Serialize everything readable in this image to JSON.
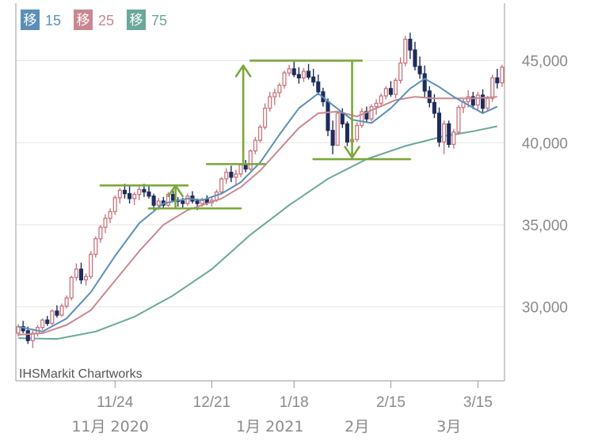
{
  "chart_data": {
    "type": "candlestick",
    "credit": "IHSMarkit Chartworks",
    "colors": {
      "up": "#c9767f",
      "down": "#1f2d5c",
      "ma15": "#5b8fb8",
      "ma25": "#c98891",
      "ma75": "#69a89a",
      "annotation": "#7ba83a",
      "axis": "#9a9a9a",
      "grid": "#e6e6e6"
    },
    "legend": [
      {
        "label": "移",
        "period": "15",
        "color": "#5b8fb8"
      },
      {
        "label": "移",
        "period": "25",
        "color": "#c98891"
      },
      {
        "label": "移",
        "period": "75",
        "color": "#69a89a"
      }
    ],
    "ylim": [
      25500,
      48500
    ],
    "y_ticks": [
      {
        "value": 30000,
        "label": "30,000"
      },
      {
        "value": 35000,
        "label": "35,000"
      },
      {
        "value": 40000,
        "label": "40,000"
      },
      {
        "value": 45000,
        "label": "45,000"
      }
    ],
    "x_ticks": [
      {
        "day": 20,
        "label": "11/24"
      },
      {
        "day": 40,
        "label": "12/21"
      },
      {
        "day": 57,
        "label": "1/18"
      },
      {
        "day": 77,
        "label": "2/15"
      },
      {
        "day": 95,
        "label": "3/15"
      }
    ],
    "month_labels": [
      {
        "day": 19,
        "label": "11月 2020"
      },
      {
        "day": 52,
        "label": "1月 2021"
      },
      {
        "day": 70,
        "label": "2月"
      },
      {
        "day": 89,
        "label": "3月"
      }
    ],
    "candles": [
      [
        28400,
        28950,
        28200,
        28800
      ],
      [
        28800,
        29150,
        28400,
        28550
      ],
      [
        28550,
        28800,
        27750,
        27950
      ],
      [
        27950,
        28600,
        27500,
        28400
      ],
      [
        28400,
        28900,
        28200,
        28750
      ],
      [
        28750,
        29300,
        28600,
        29200
      ],
      [
        29200,
        29450,
        28850,
        29000
      ],
      [
        29000,
        29850,
        28900,
        29750
      ],
      [
        29750,
        30100,
        29350,
        29500
      ],
      [
        29500,
        30200,
        29400,
        30050
      ],
      [
        30050,
        30700,
        29900,
        30550
      ],
      [
        30550,
        31900,
        30400,
        31800
      ],
      [
        31800,
        32650,
        31600,
        32300
      ],
      [
        32300,
        32700,
        31400,
        31650
      ],
      [
        31650,
        32050,
        31300,
        31850
      ],
      [
        31850,
        33400,
        31700,
        33200
      ],
      [
        33200,
        34300,
        33000,
        34150
      ],
      [
        34150,
        35000,
        33900,
        34850
      ],
      [
        34850,
        35650,
        34500,
        35400
      ],
      [
        35400,
        36000,
        35100,
        35800
      ],
      [
        35800,
        36800,
        35600,
        36650
      ],
      [
        36650,
        37250,
        36300,
        37100
      ],
      [
        37100,
        37500,
        36600,
        36900
      ],
      [
        36900,
        37400,
        36300,
        36600
      ],
      [
        36600,
        37000,
        36200,
        36850
      ],
      [
        36850,
        37400,
        36500,
        37150
      ],
      [
        37150,
        37500,
        36700,
        37000
      ],
      [
        37000,
        37350,
        36600,
        36750
      ],
      [
        36750,
        36900,
        35900,
        36200
      ],
      [
        36200,
        36650,
        35900,
        36450
      ],
      [
        36450,
        36700,
        36050,
        36200
      ],
      [
        36200,
        37000,
        36100,
        36850
      ],
      [
        36850,
        37100,
        36400,
        36500
      ],
      [
        36500,
        36700,
        36100,
        36450
      ],
      [
        36450,
        36650,
        36050,
        36300
      ],
      [
        36300,
        36900,
        36150,
        36750
      ],
      [
        36750,
        37050,
        36300,
        36450
      ],
      [
        36450,
        36600,
        35900,
        36300
      ],
      [
        36300,
        36650,
        36100,
        36550
      ],
      [
        36550,
        36800,
        36200,
        36350
      ],
      [
        36350,
        36700,
        36100,
        36500
      ],
      [
        36500,
        37150,
        36400,
        37000
      ],
      [
        37000,
        37900,
        36850,
        37800
      ],
      [
        37800,
        38450,
        37500,
        38200
      ],
      [
        38200,
        38600,
        37600,
        37900
      ],
      [
        37900,
        38350,
        37400,
        38100
      ],
      [
        38100,
        38750,
        37900,
        38650
      ],
      [
        38650,
        38950,
        38200,
        38400
      ],
      [
        38400,
        39600,
        38300,
        39500
      ],
      [
        39500,
        40350,
        39300,
        40150
      ],
      [
        40150,
        41100,
        40000,
        40950
      ],
      [
        40950,
        42400,
        40800,
        42100
      ],
      [
        42100,
        43100,
        41900,
        42800
      ],
      [
        42800,
        43300,
        42300,
        43050
      ],
      [
        43050,
        43650,
        42750,
        43500
      ],
      [
        43500,
        44400,
        43300,
        44250
      ],
      [
        44250,
        44750,
        44050,
        44500
      ],
      [
        44500,
        44950,
        44000,
        44150
      ],
      [
        44150,
        44600,
        43600,
        43950
      ],
      [
        43950,
        44550,
        43700,
        44350
      ],
      [
        44350,
        44800,
        43850,
        44000
      ],
      [
        44000,
        44500,
        43450,
        43700
      ],
      [
        43700,
        44150,
        42900,
        43100
      ],
      [
        43100,
        43350,
        42200,
        42500
      ],
      [
        42500,
        42700,
        40400,
        40750
      ],
      [
        40750,
        41350,
        39300,
        39850
      ],
      [
        39850,
        41950,
        39800,
        41800
      ],
      [
        41800,
        42100,
        40900,
        41150
      ],
      [
        41150,
        41300,
        39800,
        40050
      ],
      [
        40050,
        40500,
        39600,
        40200
      ],
      [
        40200,
        41250,
        40050,
        41050
      ],
      [
        41050,
        42100,
        40900,
        41900
      ],
      [
        41900,
        42200,
        41200,
        41450
      ],
      [
        41450,
        42350,
        41300,
        42200
      ],
      [
        42200,
        42650,
        41700,
        42400
      ],
      [
        42400,
        43000,
        42200,
        42850
      ],
      [
        42850,
        43450,
        42650,
        43300
      ],
      [
        43300,
        43750,
        42800,
        42950
      ],
      [
        42950,
        43950,
        42700,
        43800
      ],
      [
        43800,
        45200,
        43600,
        44850
      ],
      [
        44850,
        46500,
        44650,
        46300
      ],
      [
        46300,
        46700,
        45100,
        45650
      ],
      [
        45650,
        46150,
        44400,
        44650
      ],
      [
        44650,
        45250,
        43900,
        44200
      ],
      [
        44200,
        44700,
        42750,
        43150
      ],
      [
        43150,
        43450,
        42150,
        42450
      ],
      [
        42450,
        42950,
        41500,
        41800
      ],
      [
        41800,
        42150,
        39750,
        40050
      ],
      [
        40050,
        41350,
        39300,
        41150
      ],
      [
        41150,
        41350,
        39700,
        39900
      ],
      [
        39900,
        40850,
        39650,
        40650
      ],
      [
        40650,
        42300,
        40500,
        42150
      ],
      [
        42150,
        42700,
        41800,
        42500
      ],
      [
        42500,
        43200,
        42150,
        42800
      ],
      [
        42800,
        43100,
        42050,
        42300
      ],
      [
        42300,
        43100,
        41950,
        42900
      ],
      [
        42900,
        43250,
        41800,
        42100
      ],
      [
        42100,
        42850,
        41900,
        42700
      ],
      [
        42700,
        44150,
        42500,
        43950
      ],
      [
        43950,
        44500,
        43300,
        43650
      ],
      [
        43650,
        44750,
        43400,
        44600
      ]
    ],
    "ma15": [
      [
        0,
        28800
      ],
      [
        5,
        28500
      ],
      [
        10,
        29300
      ],
      [
        15,
        30900
      ],
      [
        20,
        33100
      ],
      [
        25,
        35100
      ],
      [
        30,
        36300
      ],
      [
        35,
        36600
      ],
      [
        38,
        36500
      ],
      [
        42,
        36900
      ],
      [
        46,
        37600
      ],
      [
        50,
        38800
      ],
      [
        54,
        40500
      ],
      [
        58,
        42100
      ],
      [
        62,
        43000
      ],
      [
        65,
        42300
      ],
      [
        69,
        41400
      ],
      [
        73,
        41200
      ],
      [
        77,
        42100
      ],
      [
        81,
        43300
      ],
      [
        84,
        43900
      ],
      [
        87,
        43400
      ],
      [
        90,
        42800
      ],
      [
        93,
        42300
      ],
      [
        96,
        41800
      ],
      [
        99,
        42200
      ]
    ],
    "ma25": [
      [
        0,
        28300
      ],
      [
        5,
        28400
      ],
      [
        10,
        28900
      ],
      [
        15,
        29800
      ],
      [
        20,
        31600
      ],
      [
        25,
        33400
      ],
      [
        30,
        35000
      ],
      [
        35,
        35900
      ],
      [
        38,
        36200
      ],
      [
        42,
        36600
      ],
      [
        46,
        37300
      ],
      [
        50,
        38300
      ],
      [
        54,
        39600
      ],
      [
        58,
        40900
      ],
      [
        62,
        41800
      ],
      [
        66,
        41900
      ],
      [
        70,
        41600
      ],
      [
        74,
        42100
      ],
      [
        78,
        42600
      ],
      [
        82,
        42800
      ],
      [
        86,
        42700
      ],
      [
        90,
        42700
      ],
      [
        94,
        42700
      ],
      [
        99,
        42800
      ]
    ],
    "ma75": [
      [
        0,
        28100
      ],
      [
        8,
        28050
      ],
      [
        16,
        28500
      ],
      [
        24,
        29400
      ],
      [
        32,
        30700
      ],
      [
        40,
        32300
      ],
      [
        48,
        34400
      ],
      [
        56,
        36200
      ],
      [
        64,
        37800
      ],
      [
        72,
        39000
      ],
      [
        80,
        39800
      ],
      [
        88,
        40400
      ],
      [
        94,
        40700
      ],
      [
        99,
        41000
      ]
    ],
    "annotations": {
      "hlines": [
        {
          "d1": 17,
          "d2": 35,
          "price": 37400
        },
        {
          "d1": 27,
          "d2": 46,
          "price": 36000
        },
        {
          "d1": 39,
          "d2": 51,
          "price": 38700
        },
        {
          "d1": 48,
          "d2": 71,
          "price": 45000
        },
        {
          "d1": 61,
          "d2": 81,
          "price": 39000
        }
      ],
      "arrows": [
        {
          "day": 32.5,
          "from": 36100,
          "to": 37400
        },
        {
          "day": 46.5,
          "from": 38800,
          "to": 44700
        },
        {
          "day": 69,
          "from": 45000,
          "to": 39100
        }
      ]
    }
  }
}
